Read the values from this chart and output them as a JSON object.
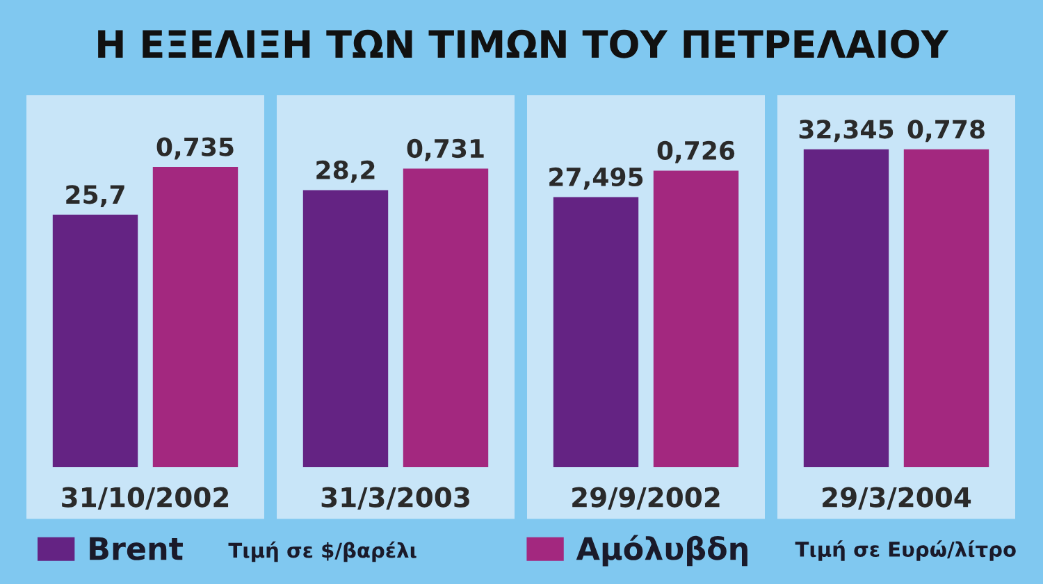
{
  "chart_data": {
    "type": "bar",
    "title": "Η ΕΞΕΛΙΞΗ ΤΩΝ ΤΙΜΩΝ ΤΟΥ ΠΕΤΡΕΛΑΙΟΥ",
    "categories": [
      "31/10/2002",
      "31/3/2003",
      "29/9/2002",
      "29/3/2004"
    ],
    "series": [
      {
        "name": "Brent",
        "color": "#642383",
        "values": [
          25.7,
          28.2,
          27.495,
          32.345
        ],
        "value_labels": [
          "25,7",
          "28,2",
          "27,495",
          "32,345"
        ]
      },
      {
        "name": "Αμόλυβδη",
        "color": "#a3287f",
        "axis": "y2",
        "values": [
          0.735,
          0.731,
          0.726,
          0.778
        ],
        "value_labels": [
          "0,735",
          "0,731",
          "0,726",
          "0,778"
        ]
      }
    ],
    "tick_labels": "x",
    "legend": "bottom",
    "annotations": [
      "Τιμή σε $/βαρέλι",
      "Τιμή σε Ευρώ/λίτρο"
    ]
  }
}
